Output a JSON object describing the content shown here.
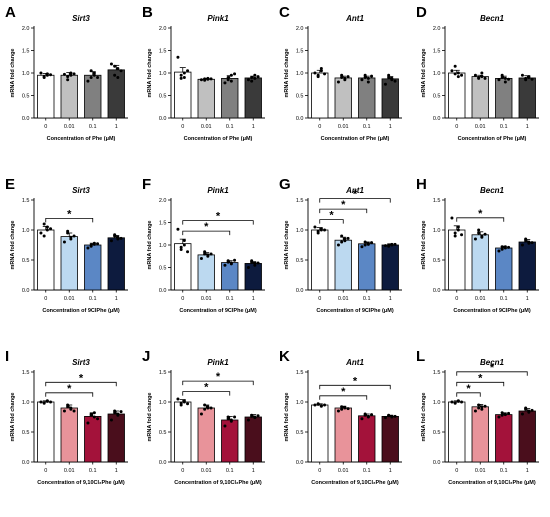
{
  "chart_data": [
    {
      "letter": "A",
      "type": "bar",
      "title": "Sirt3",
      "ylabel": "mRNA fold change",
      "xlabel": "Concentration of Phe (μM)",
      "categories": [
        "0",
        "0.01",
        "0.1",
        "1"
      ],
      "values": [
        0.95,
        0.95,
        0.95,
        1.07
      ],
      "errors": [
        0.04,
        0.06,
        0.08,
        0.1
      ],
      "colors": [
        "#ffffff",
        "#c0c0c0",
        "#808080",
        "#3a3a3a"
      ],
      "ylim": [
        0,
        2.0
      ],
      "yticks": [
        "0.0",
        "0.5",
        "1.0",
        "1.5",
        "2.0"
      ],
      "points": [
        [
          1.0,
          0.92,
          0.95,
          0.9,
          0.98,
          0.96
        ],
        [
          0.97,
          0.85,
          1.0,
          0.92,
          0.95,
          0.98
        ],
        [
          0.82,
          0.9,
          0.95,
          1.05,
          1.0,
          0.9
        ],
        [
          1.2,
          0.95,
          0.9,
          1.15,
          1.1,
          1.05
        ]
      ],
      "significance": []
    },
    {
      "letter": "B",
      "type": "bar",
      "title": "Pink1",
      "ylabel": "mRNA fold change",
      "xlabel": "Concentration of Phe (μM)",
      "categories": [
        "0",
        "0.01",
        "0.1",
        "1"
      ],
      "values": [
        1.02,
        0.86,
        0.88,
        0.89
      ],
      "errors": [
        0.1,
        0.02,
        0.06,
        0.04
      ],
      "colors": [
        "#ffffff",
        "#c0c0c0",
        "#808080",
        "#3a3a3a"
      ],
      "ylim": [
        0,
        2.0
      ],
      "yticks": [
        "0.0",
        "0.5",
        "1.0",
        "1.5",
        "2.0"
      ],
      "points": [
        [
          1.35,
          0.88,
          1.0,
          0.95,
          0.9,
          1.05
        ],
        [
          0.85,
          0.87,
          0.86,
          0.84,
          0.88,
          0.87
        ],
        [
          0.78,
          0.85,
          0.95,
          0.9,
          0.82,
          0.98
        ],
        [
          0.85,
          0.9,
          0.95,
          0.82,
          0.88,
          0.92
        ]
      ],
      "significance": []
    },
    {
      "letter": "C",
      "type": "bar",
      "title": "Ant1",
      "ylabel": "mRNA fold change",
      "xlabel": "Concentration of Phe (μM)",
      "categories": [
        "0",
        "0.01",
        "0.1",
        "1"
      ],
      "values": [
        1.0,
        0.89,
        0.89,
        0.87
      ],
      "errors": [
        0.06,
        0.04,
        0.04,
        0.05
      ],
      "colors": [
        "#ffffff",
        "#c0c0c0",
        "#808080",
        "#3a3a3a"
      ],
      "ylim": [
        0,
        2.0
      ],
      "yticks": [
        "0.0",
        "0.5",
        "1.0",
        "1.5",
        "2.0"
      ],
      "points": [
        [
          1.0,
          0.92,
          1.1,
          0.95,
          1.05,
          0.98
        ],
        [
          0.8,
          0.95,
          0.88,
          0.9,
          0.85,
          0.92
        ],
        [
          0.85,
          0.95,
          0.88,
          0.9,
          0.8,
          0.93
        ],
        [
          0.75,
          0.95,
          0.85,
          0.9,
          0.88,
          0.82
        ]
      ],
      "significance": []
    },
    {
      "letter": "D",
      "type": "bar",
      "title": "Becn1",
      "ylabel": "mRNA fold change",
      "xlabel": "Concentration of Phe (μM)",
      "categories": [
        "0",
        "0.01",
        "0.1",
        "1"
      ],
      "values": [
        1.0,
        0.92,
        0.88,
        0.89
      ],
      "errors": [
        0.06,
        0.03,
        0.05,
        0.05
      ],
      "colors": [
        "#ffffff",
        "#c0c0c0",
        "#808080",
        "#3a3a3a"
      ],
      "ylim": [
        0,
        2.0
      ],
      "yticks": [
        "0.0",
        "0.5",
        "1.0",
        "1.5",
        "2.0"
      ],
      "points": [
        [
          1.05,
          1.15,
          0.92,
          0.98,
          1.0,
          0.95
        ],
        [
          0.95,
          0.88,
          0.92,
          0.9,
          1.0,
          0.88
        ],
        [
          0.85,
          0.9,
          0.8,
          0.95,
          0.88,
          0.86
        ],
        [
          0.95,
          0.85,
          0.9,
          0.88,
          0.92,
          0.86
        ]
      ],
      "significance": []
    },
    {
      "letter": "E",
      "type": "bar",
      "title": "Sirt3",
      "ylabel": "mRNA fold change",
      "xlabel": "Concentration of 9ClPhe (μM)",
      "categories": [
        "0",
        "0.01",
        "0.1",
        "1"
      ],
      "values": [
        1.0,
        0.89,
        0.75,
        0.87
      ],
      "errors": [
        0.06,
        0.06,
        0.03,
        0.04
      ],
      "colors": [
        "#ffffff",
        "#bcd9f0",
        "#5b87c5",
        "#0d1b3e"
      ],
      "ylim": [
        0,
        1.5
      ],
      "yticks": [
        "0.0",
        "0.5",
        "1.0",
        "1.5"
      ],
      "points": [
        [
          0.95,
          1.1,
          1.05,
          0.9,
          1.0,
          1.02
        ],
        [
          0.8,
          0.95,
          0.88,
          0.98,
          0.85,
          0.9
        ],
        [
          0.7,
          0.75,
          0.78,
          0.73,
          0.76,
          0.77
        ],
        [
          0.82,
          0.92,
          0.85,
          0.9,
          0.88,
          0.86
        ]
      ],
      "significance": [
        {
          "from": 0,
          "to": 2
        }
      ]
    },
    {
      "letter": "F",
      "type": "bar",
      "title": "Pink1",
      "ylabel": "mRNA fold change",
      "xlabel": "Concentration of 9ClPhe (μM)",
      "categories": [
        "0",
        "0.01",
        "0.1",
        "1"
      ],
      "values": [
        1.03,
        0.78,
        0.61,
        0.59
      ],
      "errors": [
        0.1,
        0.05,
        0.04,
        0.04
      ],
      "colors": [
        "#ffffff",
        "#bcd9f0",
        "#5b87c5",
        "#0d1b3e"
      ],
      "ylim": [
        0,
        2.0
      ],
      "yticks": [
        "0.0",
        "0.5",
        "1.0",
        "1.5",
        "2.0"
      ],
      "points": [
        [
          1.35,
          0.9,
          1.1,
          0.95,
          1.0,
          0.85
        ],
        [
          0.7,
          0.8,
          0.75,
          0.85,
          0.78,
          0.8
        ],
        [
          0.55,
          0.65,
          0.6,
          0.62,
          0.58,
          0.66
        ],
        [
          0.5,
          0.62,
          0.6,
          0.65,
          0.55,
          0.6
        ]
      ],
      "significance": [
        {
          "from": 0,
          "to": 2
        },
        {
          "from": 0,
          "to": 3
        }
      ]
    },
    {
      "letter": "G",
      "type": "bar",
      "title": "Ant1",
      "ylabel": "mRNA fold change",
      "xlabel": "Concentration of 9ClPhe (μM)",
      "categories": [
        "0",
        "0.01",
        "0.1",
        "1"
      ],
      "values": [
        1.0,
        0.83,
        0.77,
        0.75
      ],
      "errors": [
        0.04,
        0.05,
        0.03,
        0.02
      ],
      "colors": [
        "#ffffff",
        "#bcd9f0",
        "#5b87c5",
        "#0d1b3e"
      ],
      "ylim": [
        0,
        1.5
      ],
      "yticks": [
        "0.0",
        "0.5",
        "1.0",
        "1.5"
      ],
      "points": [
        [
          1.05,
          0.95,
          1.0,
          0.98,
          1.02,
          1.0
        ],
        [
          0.75,
          0.9,
          0.85,
          0.8,
          0.82,
          0.86
        ],
        [
          0.72,
          0.8,
          0.78,
          0.75,
          0.76,
          0.79
        ],
        [
          0.74,
          0.75,
          0.76,
          0.73,
          0.75,
          0.76
        ]
      ],
      "significance": [
        {
          "from": 0,
          "to": 1
        },
        {
          "from": 0,
          "to": 2
        },
        {
          "from": 0,
          "to": 3
        }
      ]
    },
    {
      "letter": "H",
      "type": "bar",
      "title": "Becn1",
      "ylabel": "mRNA fold change",
      "xlabel": "Concentration of 9ClPhe (μM)",
      "categories": [
        "0",
        "0.01",
        "0.1",
        "1"
      ],
      "values": [
        1.0,
        0.92,
        0.7,
        0.8
      ],
      "errors": [
        0.07,
        0.05,
        0.03,
        0.04
      ],
      "colors": [
        "#ffffff",
        "#bcd9f0",
        "#5b87c5",
        "#0d1b3e"
      ],
      "ylim": [
        0,
        1.5
      ],
      "yticks": [
        "0.0",
        "0.5",
        "1.0",
        "1.5"
      ],
      "points": [
        [
          1.2,
          0.9,
          1.05,
          0.95,
          1.0,
          0.92
        ],
        [
          0.85,
          1.0,
          0.9,
          0.95,
          0.88,
          0.93
        ],
        [
          0.65,
          0.72,
          0.7,
          0.68,
          0.72,
          0.71
        ],
        [
          0.75,
          0.85,
          0.78,
          0.82,
          0.8,
          0.79
        ]
      ],
      "significance": [
        {
          "from": 0,
          "to": 2
        }
      ]
    },
    {
      "letter": "I",
      "type": "bar",
      "title": "Sirt3",
      "ylabel": "mRNA fold change",
      "xlabel": "Concentration of 9,10Cl₂Phe (μM)",
      "categories": [
        "0",
        "0.01",
        "0.1",
        "1"
      ],
      "values": [
        1.0,
        0.9,
        0.76,
        0.8
      ],
      "errors": [
        0.02,
        0.05,
        0.06,
        0.05
      ],
      "colors": [
        "#ffffff",
        "#e8939a",
        "#a3123a",
        "#4a0e1c"
      ],
      "ylim": [
        0,
        1.5
      ],
      "yticks": [
        "0.0",
        "0.5",
        "1.0",
        "1.5"
      ],
      "points": [
        [
          1.0,
          0.98,
          1.02,
          0.99,
          1.01,
          1.0
        ],
        [
          0.85,
          0.95,
          0.88,
          0.92,
          0.9,
          0.85
        ],
        [
          0.65,
          0.8,
          0.75,
          0.78,
          0.82,
          0.72
        ],
        [
          0.7,
          0.85,
          0.8,
          0.82,
          0.78,
          0.84
        ]
      ],
      "significance": [
        {
          "from": 0,
          "to": 2
        },
        {
          "from": 0,
          "to": 3
        }
      ]
    },
    {
      "letter": "J",
      "type": "bar",
      "title": "Pink1",
      "ylabel": "mRNA fold change",
      "xlabel": "Concentration of 9,10Cl₂Phe (μM)",
      "categories": [
        "0",
        "0.01",
        "0.1",
        "1"
      ],
      "values": [
        1.0,
        0.9,
        0.7,
        0.75
      ],
      "errors": [
        0.04,
        0.05,
        0.06,
        0.04
      ],
      "colors": [
        "#ffffff",
        "#e8939a",
        "#a3123a",
        "#4a0e1c"
      ],
      "ylim": [
        0,
        1.5
      ],
      "yticks": [
        "0.0",
        "0.5",
        "1.0",
        "1.5"
      ],
      "points": [
        [
          1.05,
          0.95,
          1.0,
          0.98,
          1.02,
          0.97
        ],
        [
          0.8,
          0.95,
          0.9,
          0.88,
          0.92,
          0.9
        ],
        [
          0.6,
          0.75,
          0.7,
          0.72,
          0.68,
          0.75
        ],
        [
          0.7,
          0.78,
          0.75,
          0.76,
          0.74,
          0.77
        ]
      ],
      "significance": [
        {
          "from": 0,
          "to": 2
        },
        {
          "from": 0,
          "to": 3
        }
      ]
    },
    {
      "letter": "K",
      "type": "bar",
      "title": "Ant1",
      "ylabel": "mRNA fold change",
      "xlabel": "Concentration of 9,10Cl₂Phe (μM)",
      "categories": [
        "0",
        "0.01",
        "0.1",
        "1"
      ],
      "values": [
        0.95,
        0.9,
        0.77,
        0.76
      ],
      "errors": [
        0.02,
        0.03,
        0.03,
        0.02
      ],
      "colors": [
        "#ffffff",
        "#e8939a",
        "#a3123a",
        "#4a0e1c"
      ],
      "ylim": [
        0,
        1.5
      ],
      "yticks": [
        "0.0",
        "0.5",
        "1.0",
        "1.5"
      ],
      "points": [
        [
          0.95,
          0.97,
          0.94,
          0.96,
          0.93,
          0.95
        ],
        [
          0.85,
          0.92,
          0.9,
          0.88,
          0.91,
          0.89
        ],
        [
          0.72,
          0.8,
          0.76,
          0.78,
          0.75,
          0.79
        ],
        [
          0.74,
          0.77,
          0.76,
          0.78,
          0.75,
          0.76
        ]
      ],
      "significance": [
        {
          "from": 0,
          "to": 2
        },
        {
          "from": 0,
          "to": 3
        }
      ]
    },
    {
      "letter": "L",
      "type": "bar",
      "title": "Becn1",
      "ylabel": "mRNA fold change",
      "xlabel": "Concentration of 9,10Cl₂Phe (μM)",
      "categories": [
        "0",
        "0.01",
        "0.1",
        "1"
      ],
      "values": [
        1.0,
        0.92,
        0.79,
        0.85
      ],
      "errors": [
        0.02,
        0.04,
        0.03,
        0.04
      ],
      "colors": [
        "#ffffff",
        "#e8939a",
        "#a3123a",
        "#4a0e1c"
      ],
      "ylim": [
        0,
        1.5
      ],
      "yticks": [
        "0.0",
        "0.5",
        "1.0",
        "1.5"
      ],
      "points": [
        [
          1.0,
          0.98,
          1.02,
          0.99,
          1.01,
          1.0
        ],
        [
          0.85,
          0.95,
          0.92,
          0.9,
          0.88,
          0.93
        ],
        [
          0.75,
          0.82,
          0.8,
          0.78,
          0.79,
          0.81
        ],
        [
          0.8,
          0.88,
          0.85,
          0.9,
          0.83,
          0.86
        ]
      ],
      "significance": [
        {
          "from": 0,
          "to": 1
        },
        {
          "from": 0,
          "to": 2
        },
        {
          "from": 0,
          "to": 3
        }
      ]
    }
  ]
}
